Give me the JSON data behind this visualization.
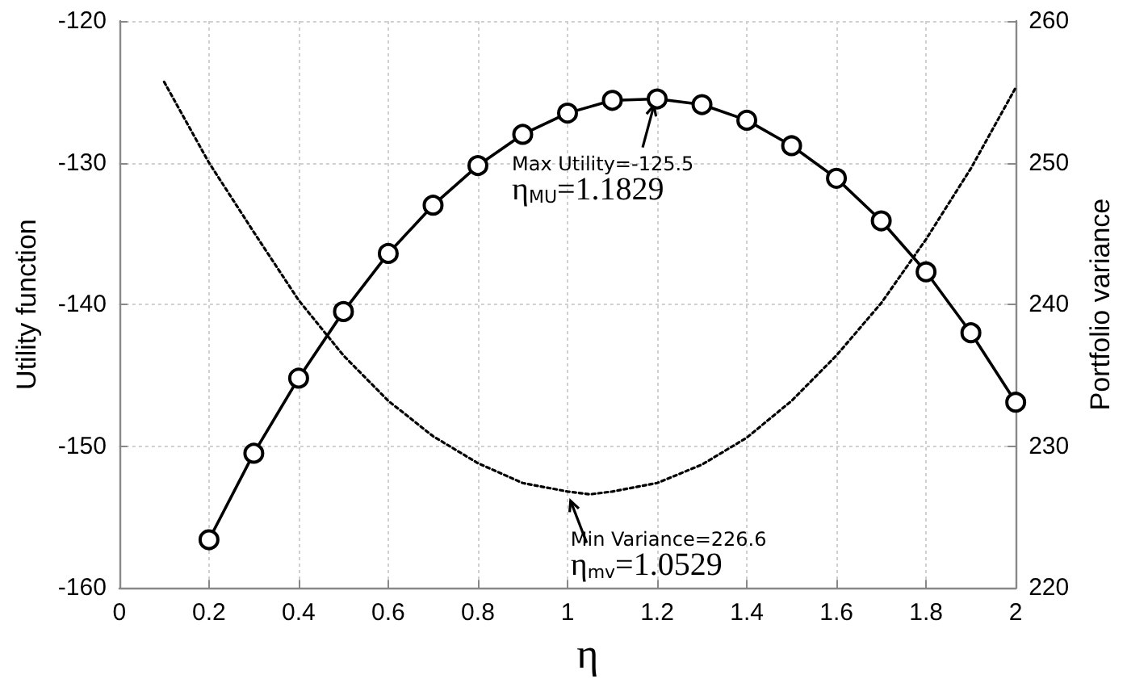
{
  "chart_data": {
    "type": "line",
    "xlabel": "η",
    "ylabel": "Utility function",
    "y2label": "Portfolio variance",
    "xlim": [
      0,
      2
    ],
    "xticks": [
      0,
      0.2,
      0.4,
      0.6,
      0.8,
      1,
      1.2,
      1.4,
      1.6,
      1.8,
      2
    ],
    "ylim": [
      -160,
      -120
    ],
    "yticks": [
      -160,
      -150,
      -140,
      -130,
      -120
    ],
    "y2lim": [
      220,
      260
    ],
    "y2ticks": [
      220,
      230,
      240,
      250,
      260
    ],
    "grid": true,
    "series": [
      {
        "color": "#000000",
        "marker": "circle",
        "line_style": "solid",
        "x": [
          0.2,
          0.3,
          0.4,
          0.5,
          0.6,
          0.7,
          0.8,
          0.9,
          1.0,
          1.1,
          1.2,
          1.3,
          1.4,
          1.5,
          1.6,
          1.7,
          1.8,
          1.9,
          2.0
        ],
        "values": [
          -156.6,
          -150.5,
          -145.2,
          -140.5,
          -136.4,
          -133.0,
          -130.2,
          -128.0,
          -126.5,
          -125.6,
          -125.5,
          -125.9,
          -127.0,
          -128.8,
          -131.1,
          -134.1,
          -137.7,
          -142.0,
          -146.9
        ]
      },
      {
        "color": "#000000",
        "marker": "none",
        "line_style": "dotted",
        "axis": "y2",
        "x": [
          0.1,
          0.2,
          0.3,
          0.4,
          0.5,
          0.6,
          0.7,
          0.8,
          0.9,
          1.0,
          1.05,
          1.1,
          1.2,
          1.3,
          1.4,
          1.5,
          1.6,
          1.7,
          1.8,
          1.9,
          2.0
        ],
        "values": [
          255.7,
          250.0,
          245.1,
          240.3,
          236.4,
          233.2,
          230.7,
          228.8,
          227.4,
          226.8,
          226.6,
          226.8,
          227.4,
          228.7,
          230.6,
          233.2,
          236.4,
          240.1,
          244.6,
          249.6,
          255.3
        ]
      }
    ],
    "annotations": [
      {
        "text": "Max Utility=-125.5\nη$_{MU}$=1.1829",
        "x": 1.2,
        "y": -125.5
      },
      "Min Variance=226.6\nη$_{mv}$=1.0529"
    ]
  }
}
